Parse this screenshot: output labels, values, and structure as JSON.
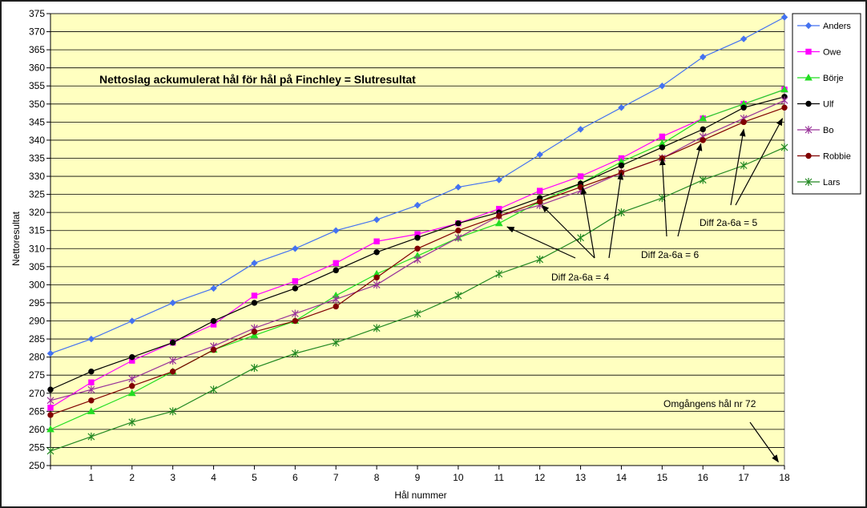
{
  "chart_data": {
    "type": "line",
    "title": "Nettoslag ackumulerat hål för hål på Finchley = Slutresultat",
    "xlabel": "Hål nummer",
    "ylabel": "Nettoresultat",
    "x": [
      0,
      1,
      2,
      3,
      4,
      5,
      6,
      7,
      8,
      9,
      10,
      11,
      12,
      13,
      14,
      15,
      16,
      17,
      18
    ],
    "x_tick_labels": [
      "",
      "1",
      "2",
      "3",
      "4",
      "5",
      "6",
      "7",
      "8",
      "9",
      "10",
      "11",
      "12",
      "13",
      "14",
      "15",
      "16",
      "17",
      "18"
    ],
    "xlim": [
      0,
      18
    ],
    "ylim": [
      250,
      375
    ],
    "y_ticks": [
      250,
      255,
      260,
      265,
      270,
      275,
      280,
      285,
      290,
      295,
      300,
      305,
      310,
      315,
      320,
      325,
      330,
      335,
      340,
      345,
      350,
      355,
      360,
      365,
      370,
      375
    ],
    "grid": true,
    "legend_position": "right",
    "plot_background": "#ffffc0",
    "series": [
      {
        "name": "Anders",
        "color": "#4472f0",
        "marker": "diamond",
        "values": [
          281,
          285,
          290,
          295,
          299,
          306,
          310,
          315,
          318,
          322,
          327,
          329,
          336,
          343,
          349,
          355,
          363,
          368,
          374
        ]
      },
      {
        "name": "Owe",
        "color": "#ff00ff",
        "marker": "square",
        "values": [
          266,
          273,
          279,
          284,
          289,
          297,
          301,
          306,
          312,
          314,
          317,
          321,
          326,
          330,
          335,
          341,
          346,
          350,
          354
        ]
      },
      {
        "name": "Börje",
        "color": "#22dd22",
        "marker": "triangle",
        "values": [
          260,
          265,
          270,
          276,
          282,
          286,
          290,
          297,
          303,
          308,
          313,
          317,
          323,
          328,
          334,
          339,
          346,
          350,
          354
        ]
      },
      {
        "name": "Ulf",
        "color": "#000000",
        "marker": "circle",
        "values": [
          271,
          276,
          280,
          284,
          290,
          295,
          299,
          304,
          309,
          313,
          317,
          320,
          324,
          328,
          333,
          338,
          343,
          349,
          352
        ]
      },
      {
        "name": "Bo",
        "color": "#993399",
        "marker": "star",
        "values": [
          268,
          271,
          274,
          279,
          283,
          288,
          292,
          296,
          300,
          307,
          313,
          319,
          322,
          326,
          331,
          335,
          341,
          346,
          351
        ]
      },
      {
        "name": "Robbie",
        "color": "#800000",
        "marker": "circle",
        "values": [
          264,
          268,
          272,
          276,
          282,
          287,
          290,
          294,
          302,
          310,
          315,
          319,
          323,
          327,
          331,
          335,
          340,
          345,
          349
        ]
      },
      {
        "name": "Lars",
        "color": "#228822",
        "marker": "star",
        "values": [
          254,
          258,
          262,
          265,
          271,
          277,
          281,
          284,
          288,
          292,
          297,
          303,
          307,
          313,
          320,
          324,
          329,
          333,
          338
        ]
      }
    ],
    "annotations": [
      {
        "text": "Diff 2a-6a = 4",
        "arrows_to": [
          {
            "x": 11.2,
            "y": 316
          },
          {
            "x": 12.05,
            "y": 322
          },
          {
            "x": 13.05,
            "y": 327
          },
          {
            "x": 14.0,
            "y": 331
          }
        ]
      },
      {
        "text": "Diff 2a-6a = 6",
        "arrows_to": [
          {
            "x": 15.0,
            "y": 335
          },
          {
            "x": 15.95,
            "y": 339
          }
        ]
      },
      {
        "text": "Diff 2a-6a = 5",
        "arrows_to": [
          {
            "x": 17.0,
            "y": 343
          },
          {
            "x": 17.95,
            "y": 346
          }
        ]
      },
      {
        "text": "Omgångens hål nr 72",
        "arrows_to": [
          {
            "x": 17.85,
            "y": 251
          }
        ]
      }
    ]
  }
}
